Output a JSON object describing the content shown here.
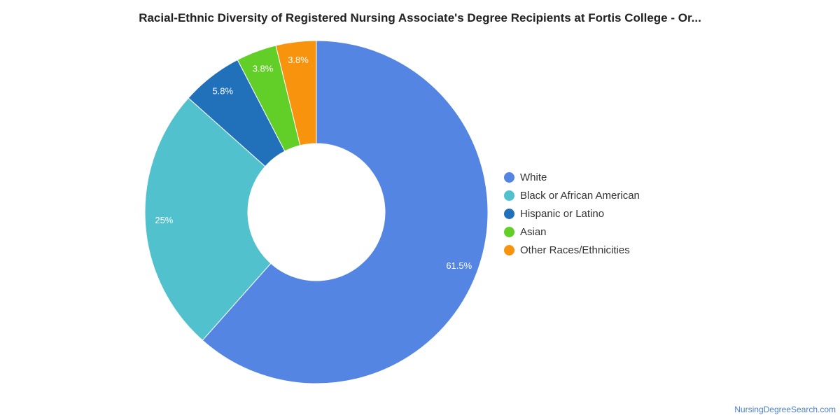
{
  "chart_data": {
    "type": "pie",
    "title": "Racial-Ethnic Diversity of Registered Nursing Associate's Degree Recipients at Fortis College - Or...",
    "donut": true,
    "legend_position": "right",
    "series": [
      {
        "name": "White",
        "value": 61.5,
        "label": "61.5%",
        "color": "#5485e2"
      },
      {
        "name": "Black or African American",
        "value": 25,
        "label": "25%",
        "color": "#51c1cd"
      },
      {
        "name": "Hispanic or Latino",
        "value": 5.8,
        "label": "5.8%",
        "color": "#2070ba"
      },
      {
        "name": "Asian",
        "value": 3.8,
        "label": "3.8%",
        "color": "#62ce28"
      },
      {
        "name": "Other Races/Ethnicities",
        "value": 3.8,
        "label": "3.8%",
        "color": "#f8930d"
      }
    ]
  },
  "source": "NursingDegreeSearch.com"
}
